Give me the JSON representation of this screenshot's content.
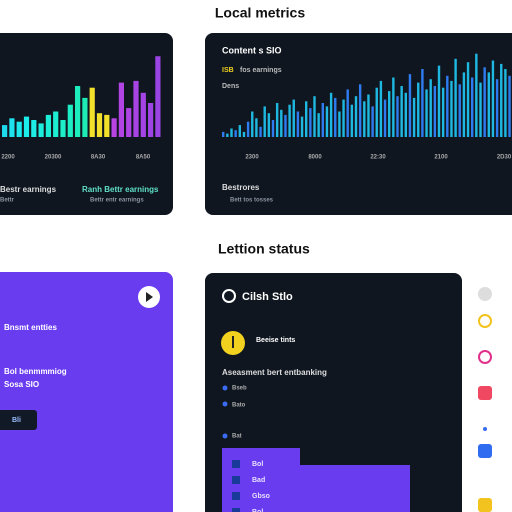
{
  "header": {
    "title": "Local metrics"
  },
  "activity_card": {
    "bars": [
      14,
      22,
      18,
      24,
      20,
      16,
      26,
      30,
      20,
      38,
      60,
      46,
      58,
      28,
      26,
      22,
      64,
      34,
      66,
      52,
      40,
      95
    ],
    "axis_labels": [
      "2200",
      "20300",
      "8A30",
      "8A50"
    ],
    "legend": [
      "Bestr earnings",
      "Ranh Bettr earnings"
    ],
    "notes": [
      "Bettr",
      "Bettr entr earnings"
    ]
  },
  "content_card": {
    "title": "Content s SIO",
    "badge": "ISB",
    "subtitle": "fos earnings",
    "caption": "Dens",
    "bars": [
      6,
      4,
      10,
      8,
      14,
      6,
      18,
      30,
      22,
      12,
      36,
      28,
      20,
      40,
      32,
      26,
      38,
      44,
      30,
      24,
      42,
      34,
      48,
      28,
      40,
      36,
      52,
      46,
      30,
      44,
      56,
      38,
      48,
      62,
      42,
      50,
      36,
      58,
      66,
      44,
      54,
      70,
      48,
      60,
      52,
      74,
      46,
      64,
      80,
      56,
      68,
      60,
      84,
      58,
      72,
      66,
      92,
      62,
      76,
      88,
      70,
      98,
      64,
      82,
      76,
      90,
      68,
      86,
      80,
      72
    ],
    "axis_labels": [
      "2300",
      "8000",
      "22:30",
      "2100",
      "2D30"
    ],
    "footer": "Bestrores",
    "note": "Bett tos tosses"
  },
  "section": {
    "title": "Lettion status"
  },
  "promo_card": {
    "title": "Bnsmt entties",
    "lines": [
      "Bol benmmmiog",
      "Sosa SIO"
    ],
    "button": "Bli"
  },
  "status_card": {
    "title": "Cilsh Stlo",
    "item": "Beeise tints",
    "heading": "Aseasment bert entbanking",
    "list": [
      "Bseb",
      "Bato",
      "Bat"
    ],
    "rows": [
      "Bol",
      "Bad",
      "Gbso",
      "Bol"
    ]
  }
}
